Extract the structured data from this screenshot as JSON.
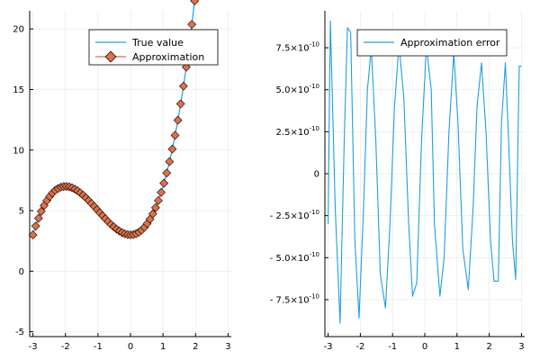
{
  "chart_data": [
    {
      "type": "line",
      "panel": "left",
      "grid": true,
      "xlim": [
        -3.1,
        3.1
      ],
      "ylim": [
        -5.4,
        21.5
      ],
      "xticks": [
        -3,
        -2,
        -1,
        0,
        1,
        2,
        3
      ],
      "yticks": [
        -5,
        0,
        5,
        10,
        15,
        20
      ],
      "xtick_labels": [
        "-3",
        "-2",
        "-1",
        "0",
        "1",
        "2",
        "3"
      ],
      "ytick_labels": [
        "-5",
        "0",
        "5",
        "10",
        "15",
        "20"
      ],
      "legend_position": "top-right",
      "colors": {
        "true_value": "#1f9fdf",
        "approximation": "#e26f46",
        "marker_edge": "#000000"
      },
      "series": [
        {
          "name": "True value",
          "style": "line",
          "function": "x^3 + 3x^2 + 3"
        },
        {
          "name": "Approximation",
          "style": "diamond-markers",
          "function": "x^3 + 3x^2 + 3",
          "x_range": [
            -3,
            3
          ],
          "n_points": 71
        }
      ]
    },
    {
      "type": "line",
      "panel": "right",
      "grid": true,
      "xlim": [
        -3.1,
        3.1
      ],
      "ylim": [
        -9.7e-10,
        9.7e-10
      ],
      "xticks": [
        -3,
        -2,
        -1,
        0,
        1,
        2,
        3
      ],
      "yticks": [
        7.5e-10,
        5e-10,
        2.5e-10,
        0,
        -2.5e-10,
        -5e-10,
        -7.5e-10
      ],
      "xtick_labels": [
        "-3",
        "-2",
        "-1",
        "0",
        "1",
        "2",
        "3"
      ],
      "ytick_labels": [
        {
          "mantissa": "7.5",
          "exp": "-10"
        },
        {
          "mantissa": "5.0",
          "exp": "-10"
        },
        {
          "mantissa": "2.5",
          "exp": "-10"
        },
        {
          "mantissa": "0",
          "exp": ""
        },
        {
          "mantissa": "- 2.5",
          "exp": "-10"
        },
        {
          "mantissa": "- 5.0",
          "exp": "-10"
        },
        {
          "mantissa": "- 7.5",
          "exp": "-10"
        }
      ],
      "legend_position": "top-right",
      "colors": {
        "error": "#1f9fdf"
      },
      "series": [
        {
          "name": "Approximation error",
          "x": [
            -3.0,
            -2.93,
            -2.78,
            -2.63,
            -2.5,
            -2.4,
            -2.3,
            -2.17,
            -2.04,
            -1.9,
            -1.78,
            -1.66,
            -1.52,
            -1.38,
            -1.22,
            -1.08,
            -0.94,
            -0.8,
            -0.65,
            -0.5,
            -0.38,
            -0.25,
            -0.1,
            0.05,
            0.2,
            0.3,
            0.47,
            0.6,
            0.75,
            0.9,
            1.03,
            1.18,
            1.35,
            1.5,
            1.62,
            1.76,
            1.9,
            2.04,
            2.15,
            2.28,
            2.38,
            2.5,
            2.6,
            2.72,
            2.82,
            2.93,
            3.0
          ],
          "y": [
            -3e-10,
            9.1e-10,
            -2e-10,
            -8.9e-10,
            2e-10,
            8.7e-10,
            8.4e-10,
            -4e-10,
            -8.6e-10,
            -2e-10,
            5e-10,
            7.5e-10,
            2e-10,
            -6e-10,
            -8e-10,
            -3e-10,
            4e-10,
            7.7e-10,
            4.5e-10,
            -3e-10,
            -7.3e-10,
            -6.5e-10,
            2e-10,
            7.6e-10,
            5e-10,
            -3e-10,
            -7.3e-10,
            -5e-10,
            2.5e-10,
            7.2e-10,
            3e-10,
            -4.5e-10,
            -6.9e-10,
            -2e-10,
            4e-10,
            6.6e-10,
            2.5e-10,
            -4e-10,
            -6.4e-10,
            -6.4e-10,
            3e-10,
            6.6e-10,
            2e-10,
            -4e-10,
            -6.3e-10,
            6.4e-10,
            6.4e-10
          ]
        }
      ]
    }
  ]
}
